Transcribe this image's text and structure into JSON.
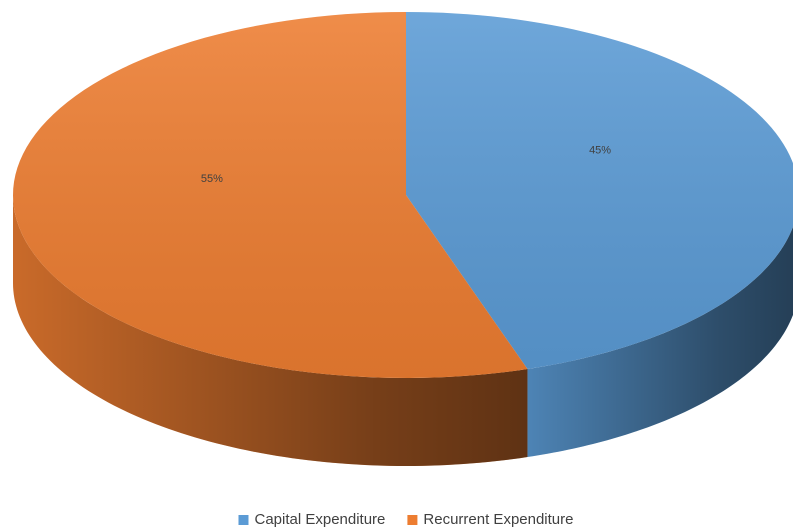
{
  "chart_data": {
    "type": "pie",
    "categories": [
      "Capital Expenditure",
      "Recurrent Expenditure"
    ],
    "values": [
      45,
      55
    ],
    "value_labels": [
      "45%",
      "55%"
    ],
    "colors": [
      "#5b9bd5",
      "#ed7d31"
    ],
    "legend": "bottom"
  }
}
